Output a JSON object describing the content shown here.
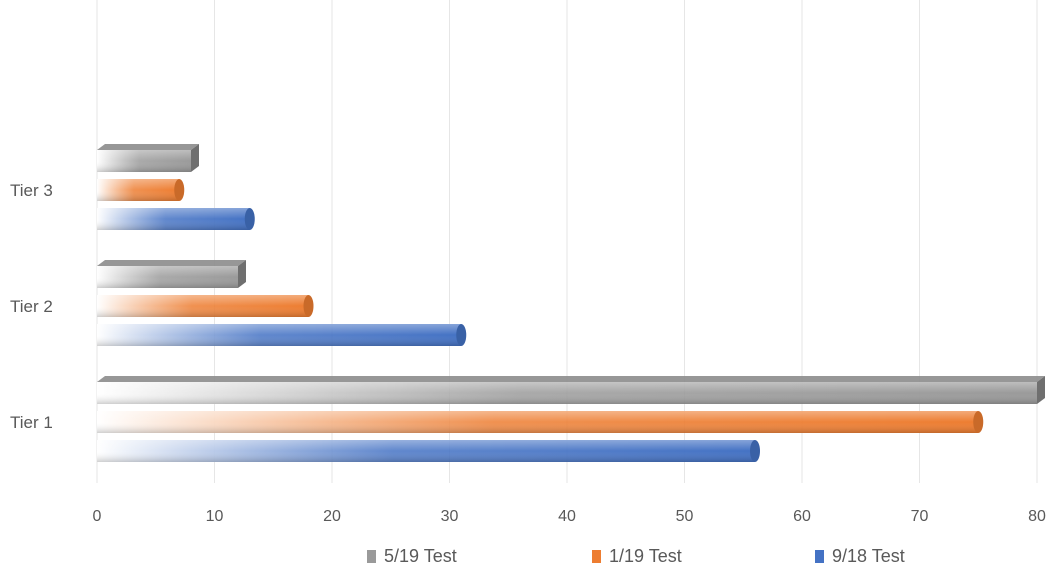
{
  "colors": {
    "series_5_19": "#9a9a9a",
    "series_1_19": "#ed7d31",
    "series_9_18": "#4472c4",
    "grid": "#e6e6e6",
    "text": "#595959"
  },
  "chart_data": {
    "type": "bar",
    "orientation": "horizontal",
    "style": "3d-cylinder-gradient",
    "categories": [
      "Tier 1",
      "Tier 2",
      "Tier 3"
    ],
    "series": [
      {
        "name": "9/18 Test",
        "values": [
          56,
          31,
          13
        ]
      },
      {
        "name": "1/19 Test",
        "values": [
          75,
          18,
          7
        ]
      },
      {
        "name": "5/19 Test",
        "values": [
          80,
          12,
          8
        ]
      }
    ],
    "xlim": [
      0,
      80
    ],
    "xticks": [
      "0",
      "10",
      "20",
      "30",
      "40",
      "50",
      "60",
      "70",
      "80"
    ],
    "grid": "vertical",
    "legend": "bottom",
    "legend_order": [
      "5/19 Test",
      "1/19 Test",
      "9/18 Test"
    ]
  }
}
